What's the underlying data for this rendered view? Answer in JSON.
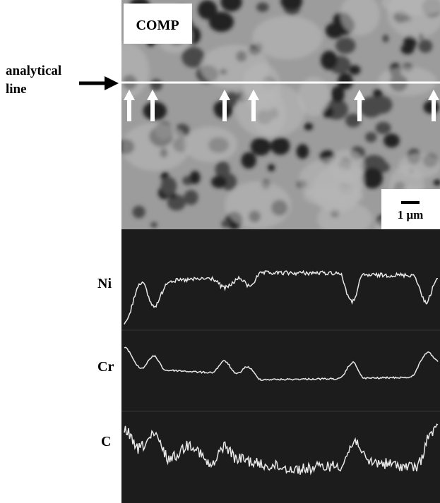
{
  "figure": {
    "panel_label": "COMP",
    "line_label": [
      "analytical",
      "line"
    ],
    "scale_bar": "1 μm",
    "traces": [
      "Ni",
      "Cr",
      "C"
    ]
  }
}
